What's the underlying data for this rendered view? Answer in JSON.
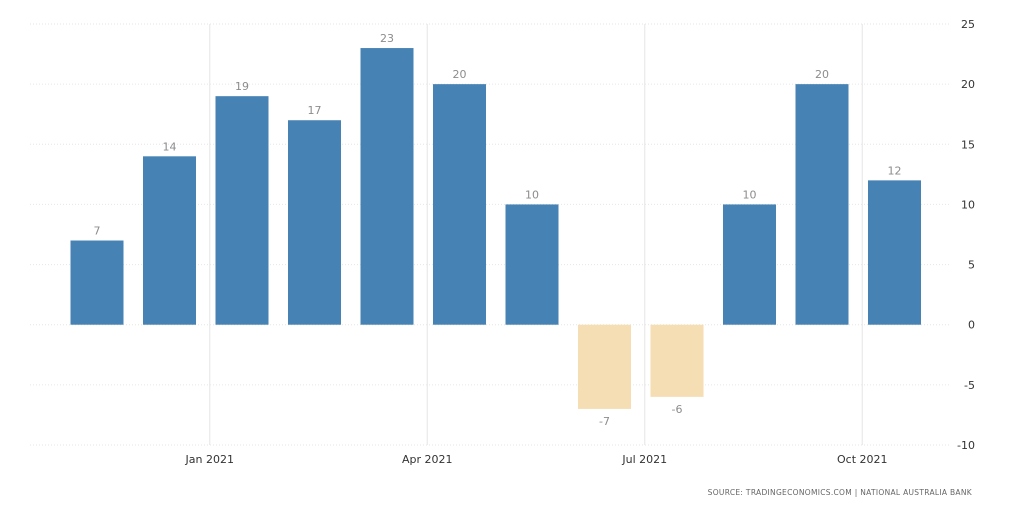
{
  "chart_data": {
    "type": "bar",
    "categories": [
      "2020-11",
      "2020-12",
      "2021-01",
      "2021-02",
      "2021-03",
      "2021-04",
      "2021-05",
      "2021-06",
      "2021-07",
      "2021-08",
      "2021-09",
      "2021-10"
    ],
    "values": [
      7,
      14,
      19,
      17,
      23,
      20,
      10,
      -7,
      -6,
      10,
      20,
      12
    ],
    "data_labels": [
      "7",
      "14",
      "19",
      "17",
      "23",
      "20",
      "10",
      "-7",
      "-6",
      "10",
      "20",
      "12"
    ],
    "x_ticks": [
      {
        "label": "Jan 2021",
        "category": "2021-01"
      },
      {
        "label": "Apr 2021",
        "category": "2021-04"
      },
      {
        "label": "Jul 2021",
        "category": "2021-07"
      },
      {
        "label": "Oct 2021",
        "category": "2021-10"
      }
    ],
    "y_ticks": [
      25,
      20,
      15,
      10,
      5,
      0,
      -5,
      -10
    ],
    "y_tick_labels": [
      "25",
      "20",
      "15",
      "10",
      "5",
      "0",
      "-5",
      "-10"
    ],
    "ylim": [
      -10,
      25
    ],
    "y_axis_side": "right",
    "grid": true,
    "colors": {
      "positive": "#4682b4",
      "negative": "#f5deb3",
      "data_label": "#8c8c8c"
    },
    "title": "",
    "xlabel": "",
    "ylabel": ""
  },
  "source_text": "SOURCE: TRADINGECONOMICS.COM | NATIONAL AUSTRALIA BANK"
}
